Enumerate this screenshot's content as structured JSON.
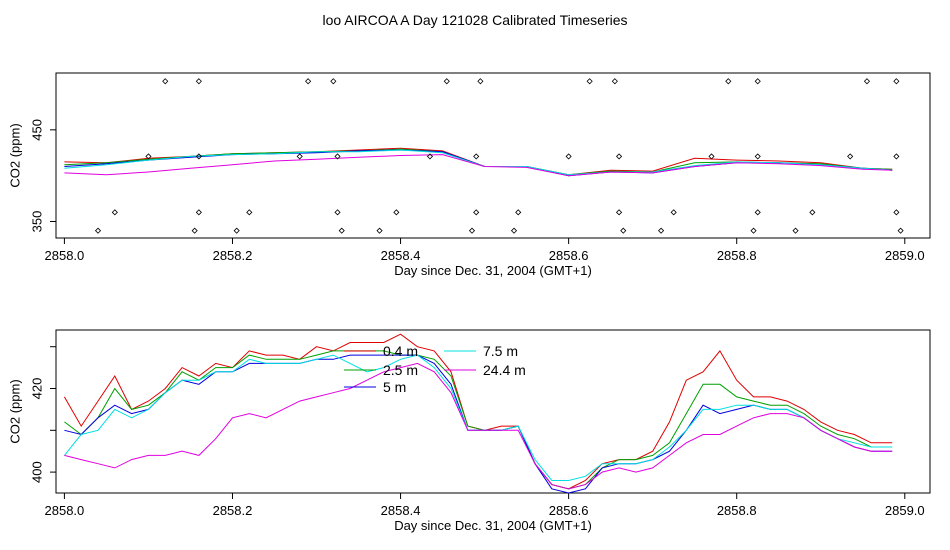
{
  "title": "loo AIRCOA A  Day 121028  Calibrated Timeseries",
  "chart_data": [
    {
      "type": "line",
      "name": "top-panel",
      "xlabel": "Day since Dec. 31, 2004 (GMT+1)",
      "ylabel": "CO2 (ppm)",
      "xlim": [
        2857.99,
        2859.03
      ],
      "ylim": [
        332,
        512
      ],
      "xticks": [
        2858.0,
        2858.2,
        2858.4,
        2858.6,
        2858.8,
        2859.0
      ],
      "xtick_labels": [
        "2858.0",
        "2858.2",
        "2858.4",
        "2858.6",
        "2858.8",
        "2859.0"
      ],
      "yticks": [
        350,
        450
      ],
      "ytick_labels": [
        "350",
        "450"
      ],
      "x": [
        2858.0,
        2858.05,
        2858.1,
        2858.15,
        2858.2,
        2858.25,
        2858.3,
        2858.35,
        2858.4,
        2858.45,
        2858.5,
        2858.55,
        2858.6,
        2858.65,
        2858.7,
        2858.75,
        2858.8,
        2858.85,
        2858.9,
        2858.95,
        2858.985
      ],
      "series": [
        {
          "color": "#e00000",
          "values": [
            415,
            414,
            419,
            421,
            424,
            425,
            426,
            428,
            430,
            427,
            410,
            410,
            401,
            406,
            405,
            419,
            417,
            416,
            414,
            408,
            407
          ]
        },
        {
          "color": "#00a000",
          "values": [
            412,
            414,
            418,
            421,
            424,
            425,
            426,
            427,
            429,
            426,
            410,
            410,
            401,
            405,
            404,
            414,
            415,
            414,
            413,
            408,
            407
          ]
        },
        {
          "color": "#0000e0",
          "values": [
            410,
            413,
            417,
            420,
            423,
            424,
            425,
            427,
            428,
            426,
            410,
            410,
            400,
            404,
            403,
            410,
            414,
            414,
            412,
            408,
            406
          ]
        },
        {
          "color": "#00e0e0",
          "values": [
            408,
            412,
            417,
            421,
            423,
            424,
            426,
            426,
            428,
            425,
            410,
            410,
            401,
            404,
            404,
            411,
            415,
            414,
            412,
            408,
            406
          ]
        },
        {
          "color": "#e000e0",
          "values": [
            403,
            401,
            404,
            408,
            412,
            416,
            418,
            420,
            422,
            423,
            410,
            409,
            400,
            404,
            403,
            410,
            414,
            413,
            411,
            407,
            406
          ]
        }
      ],
      "markers": {
        "x_high": [
          2858.12,
          2858.16,
          2858.29,
          2858.32,
          2858.455,
          2858.495,
          2858.625,
          2858.655,
          2858.79,
          2858.825,
          2858.955,
          2858.99
        ],
        "y_high": 503,
        "x_mid": [
          2858.1,
          2858.16,
          2858.28,
          2858.325,
          2858.435,
          2858.49,
          2858.6,
          2858.66,
          2858.77,
          2858.825,
          2858.935,
          2858.99
        ],
        "y_mid": 421,
        "x_low": [
          2858.06,
          2858.16,
          2858.22,
          2858.325,
          2858.395,
          2858.49,
          2858.54,
          2858.66,
          2858.725,
          2858.825,
          2858.89,
          2858.99
        ],
        "y_low": 360,
        "x_bottom": [
          2858.04,
          2858.155,
          2858.205,
          2858.33,
          2858.375,
          2858.485,
          2858.535,
          2858.665,
          2858.71,
          2858.82,
          2858.87,
          2858.995
        ],
        "y_bottom": 340
      }
    },
    {
      "type": "line",
      "name": "bottom-panel",
      "xlabel": "Day since Dec. 31, 2004 (GMT+1)",
      "ylabel": "CO2 (ppm)",
      "xlim": [
        2857.99,
        2859.03
      ],
      "ylim": [
        395,
        434
      ],
      "xticks": [
        2858.0,
        2858.2,
        2858.4,
        2858.6,
        2858.8,
        2859.0
      ],
      "xtick_labels": [
        "2858.0",
        "2858.2",
        "2858.4",
        "2858.6",
        "2858.8",
        "2859.0"
      ],
      "yticks": [
        400,
        410,
        420,
        430
      ],
      "ytick_labels": [
        "400",
        "",
        "420",
        ""
      ],
      "legend": [
        {
          "label": "0.4 m",
          "color": "#e00000"
        },
        {
          "label": "2.5 m",
          "color": "#00a000"
        },
        {
          "label": "5 m",
          "color": "#0000e0"
        },
        {
          "label": "7.5 m",
          "color": "#00e0e0"
        },
        {
          "label": "24.4 m",
          "color": "#e000e0"
        }
      ],
      "x": [
        2858.0,
        2858.02,
        2858.04,
        2858.06,
        2858.08,
        2858.1,
        2858.12,
        2858.14,
        2858.16,
        2858.18,
        2858.2,
        2858.22,
        2858.24,
        2858.26,
        2858.28,
        2858.3,
        2858.32,
        2858.34,
        2858.36,
        2858.38,
        2858.4,
        2858.42,
        2858.44,
        2858.46,
        2858.48,
        2858.5,
        2858.52,
        2858.54,
        2858.56,
        2858.58,
        2858.6,
        2858.62,
        2858.64,
        2858.66,
        2858.68,
        2858.7,
        2858.72,
        2858.74,
        2858.76,
        2858.78,
        2858.8,
        2858.82,
        2858.84,
        2858.86,
        2858.88,
        2858.9,
        2858.92,
        2858.94,
        2858.96,
        2858.985
      ],
      "series": [
        {
          "name": "0.4 m",
          "values": [
            418,
            411,
            417,
            423,
            415,
            417,
            420,
            425,
            423,
            426,
            425,
            429,
            428,
            428,
            427,
            430,
            429,
            431,
            431,
            431,
            433,
            430,
            429,
            424,
            411,
            410,
            411,
            411,
            402,
            397,
            396,
            398,
            402,
            403,
            403,
            405,
            412,
            422,
            424,
            429,
            422,
            418,
            418,
            417,
            415,
            412,
            410,
            409,
            407,
            407
          ]
        },
        {
          "name": "2.5 m",
          "values": [
            412,
            409,
            413,
            420,
            415,
            416,
            419,
            424,
            422,
            425,
            425,
            428,
            427,
            427,
            427,
            428,
            429,
            429,
            429,
            429,
            428,
            428,
            427,
            423,
            411,
            410,
            410,
            411,
            402,
            397,
            396,
            397,
            401,
            403,
            403,
            404,
            407,
            414,
            421,
            421,
            418,
            417,
            416,
            416,
            414,
            411,
            409,
            408,
            406,
            406
          ]
        },
        {
          "name": "5 m",
          "values": [
            410,
            409,
            413,
            416,
            414,
            415,
            419,
            422,
            421,
            424,
            424,
            426,
            426,
            426,
            426,
            427,
            427,
            428,
            428,
            428,
            428,
            428,
            426,
            421,
            410,
            410,
            410,
            411,
            402,
            396,
            395,
            396,
            401,
            402,
            402,
            403,
            405,
            410,
            416,
            414,
            415,
            416,
            415,
            415,
            413,
            410,
            408,
            406,
            405,
            405
          ]
        },
        {
          "name": "7.5 m",
          "values": [
            404,
            409,
            410,
            415,
            413,
            415,
            419,
            422,
            422,
            424,
            424,
            427,
            426,
            426,
            426,
            427,
            428,
            426,
            424,
            425,
            427,
            428,
            425,
            420,
            410,
            410,
            410,
            411,
            403,
            398,
            398,
            399,
            402,
            402,
            402,
            403,
            406,
            410,
            415,
            415,
            416,
            416,
            415,
            415,
            413,
            410,
            408,
            407,
            406,
            406
          ]
        },
        {
          "name": "24.4 m",
          "values": [
            404,
            403,
            402,
            401,
            403,
            404,
            404,
            405,
            404,
            408,
            413,
            414,
            413,
            415,
            417,
            418,
            419,
            420,
            422,
            424,
            425,
            426,
            424,
            419,
            410,
            410,
            410,
            410,
            402,
            397,
            396,
            397,
            400,
            401,
            400,
            401,
            404,
            407,
            409,
            409,
            411,
            413,
            414,
            414,
            413,
            410,
            408,
            406,
            405,
            405
          ]
        }
      ]
    }
  ]
}
